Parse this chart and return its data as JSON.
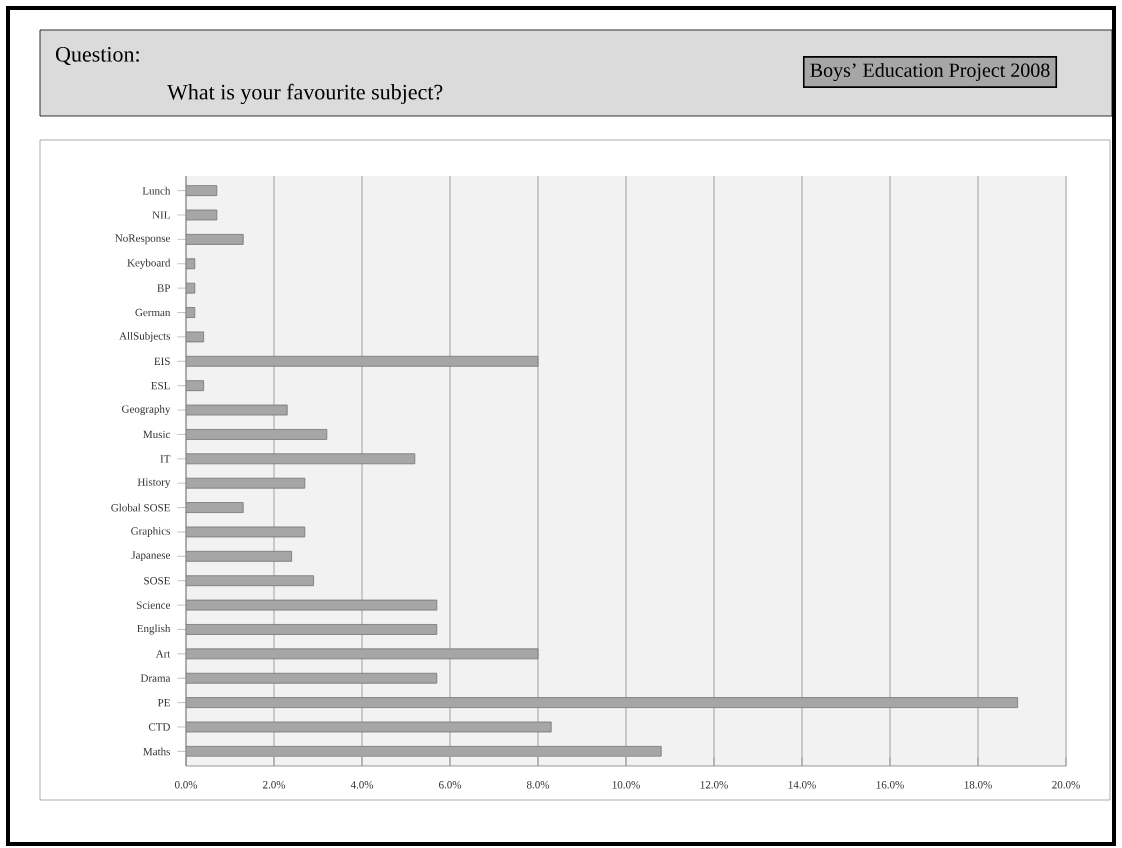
{
  "chart_data": {
    "type": "bar",
    "orientation": "horizontal",
    "title": "Question:",
    "subtitle": "What is your favourite subject?",
    "annotations": [
      "Boys’ Education Project 2008"
    ],
    "categories": [
      "Lunch",
      "NIL",
      "NoResponse",
      "Keyboard",
      "BP",
      "German",
      "AllSubjects",
      "EIS",
      "ESL",
      "Geography",
      "Music",
      "IT",
      "History",
      "Global SOSE",
      "Graphics",
      "Japanese",
      "SOSE",
      "Science",
      "English",
      "Art",
      "Drama",
      "PE",
      "CTD",
      "Maths"
    ],
    "values": [
      0.7,
      0.7,
      1.3,
      0.2,
      0.2,
      0.2,
      0.4,
      8.0,
      0.4,
      2.3,
      3.2,
      5.2,
      2.7,
      1.3,
      2.7,
      2.4,
      2.9,
      5.7,
      5.7,
      8.0,
      5.7,
      18.9,
      8.3,
      10.8
    ],
    "color": "#a6a6a6",
    "xlim": [
      0,
      20
    ],
    "xticks": [
      {
        "value": 0,
        "label": "0.0%"
      },
      {
        "value": 2,
        "label": "2.0%"
      },
      {
        "value": 4,
        "label": "4.0%"
      },
      {
        "value": 6,
        "label": "6.0%"
      },
      {
        "value": 8,
        "label": "8.0%"
      },
      {
        "value": 10,
        "label": "10.0%"
      },
      {
        "value": 12,
        "label": "12.0%"
      },
      {
        "value": 14,
        "label": "14.0%"
      },
      {
        "value": 16,
        "label": "16.0%"
      },
      {
        "value": 18,
        "label": "18.0%"
      },
      {
        "value": 20,
        "label": "20.0%"
      }
    ],
    "grid": "x"
  }
}
